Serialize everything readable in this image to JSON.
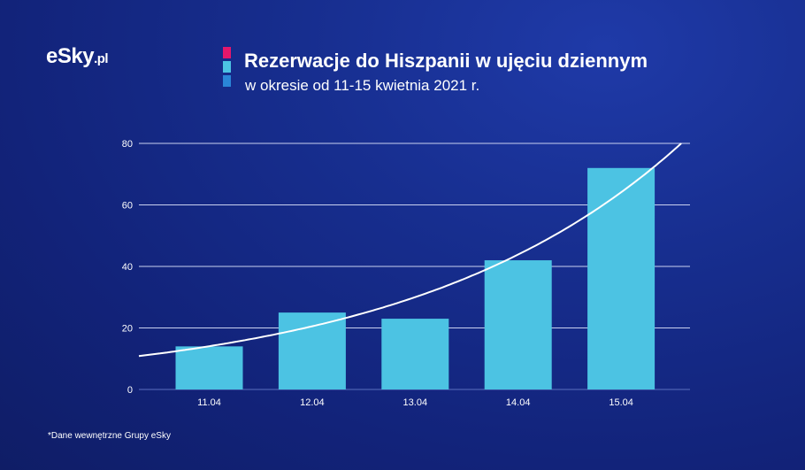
{
  "logo": {
    "text": "eSky",
    "domain": ".pl"
  },
  "header": {
    "title": "Rezerwacje do Hiszpanii w ujęciu dziennym",
    "subtitle": "w okresie od 11-15 kwietnia 2021 r.",
    "legend_colors": [
      "#e5176b",
      "#4cc3e3",
      "#2a86d8"
    ]
  },
  "footnote": "*Dane wewnętrzne Grupy eSky",
  "chart_data": {
    "type": "bar",
    "categories": [
      "11.04",
      "12.04",
      "13.04",
      "14.04",
      "15.04"
    ],
    "values": [
      14,
      25,
      23,
      42,
      72
    ],
    "ylim": [
      0,
      80
    ],
    "yticks": [
      0,
      20,
      40,
      60,
      80
    ],
    "grid": true,
    "bar_color": "#4cc3e3",
    "trendline": {
      "type": "exponential",
      "color": "#ffffff"
    }
  }
}
